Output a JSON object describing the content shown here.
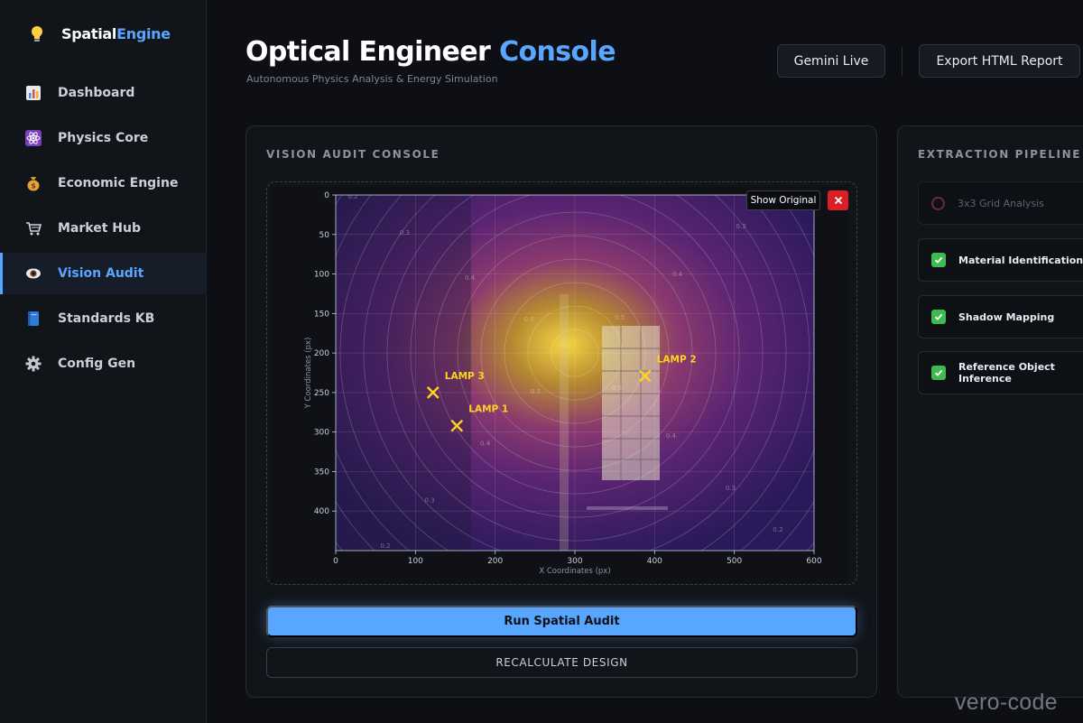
{
  "brand": {
    "name_part1": "Spatial",
    "name_part2": "Engine",
    "icon": "lightbulb-icon"
  },
  "sidebar": {
    "items": [
      {
        "label": "Dashboard",
        "icon": "bar-chart-icon",
        "active": false
      },
      {
        "label": "Physics Core",
        "icon": "atom-icon",
        "active": false
      },
      {
        "label": "Economic Engine",
        "icon": "money-bag-icon",
        "active": false
      },
      {
        "label": "Market Hub",
        "icon": "shopping-cart-icon",
        "active": false
      },
      {
        "label": "Vision Audit",
        "icon": "eye-icon",
        "active": true
      },
      {
        "label": "Standards KB",
        "icon": "book-icon",
        "active": false
      },
      {
        "label": "Config Gen",
        "icon": "gear-icon",
        "active": false
      }
    ]
  },
  "header": {
    "title_part1": "Optical Engineer",
    "title_part2": "Console",
    "subtitle": "Autonomous Physics Analysis & Energy Simulation",
    "gemini_label": "Gemini Live",
    "export_label": "Export HTML Report"
  },
  "vision": {
    "title": "VISION AUDIT CONSOLE",
    "show_original_label": "Show Original",
    "run_label": "Run Spatial Audit",
    "recalc_label": "RECALCULATE DESIGN"
  },
  "chart_data": {
    "type": "scatter",
    "title": "",
    "xlabel": "X Coordinates (px)",
    "ylabel": "Y Coordinates (px)",
    "xlim": [
      0,
      600
    ],
    "ylim": [
      450,
      0
    ],
    "xticks": [
      "0",
      "100",
      "200",
      "300",
      "400",
      "500",
      "600"
    ],
    "yticks": [
      "0",
      "50",
      "100",
      "150",
      "200",
      "250",
      "300",
      "350",
      "400"
    ],
    "grid": true,
    "points": [
      {
        "label": "LAMP 3",
        "x": 122,
        "y": 250
      },
      {
        "label": "LAMP 1",
        "x": 152,
        "y": 292
      },
      {
        "label": "LAMP 2",
        "x": 388,
        "y": 229
      }
    ],
    "contour_center": [
      300,
      200
    ],
    "contour_labels": [
      "0.1",
      "0.2",
      "0.3",
      "0.4",
      "0.5"
    ]
  },
  "pipeline": {
    "title": "EXTRACTION PIPELINE",
    "steps": [
      {
        "label": "3x3 Grid Analysis",
        "status": "pending"
      },
      {
        "label": "Material Identification",
        "status": "done"
      },
      {
        "label": "Shadow Mapping",
        "status": "done"
      },
      {
        "label": "Reference Object Inference",
        "status": "done"
      }
    ]
  },
  "watermark": "vero-code"
}
